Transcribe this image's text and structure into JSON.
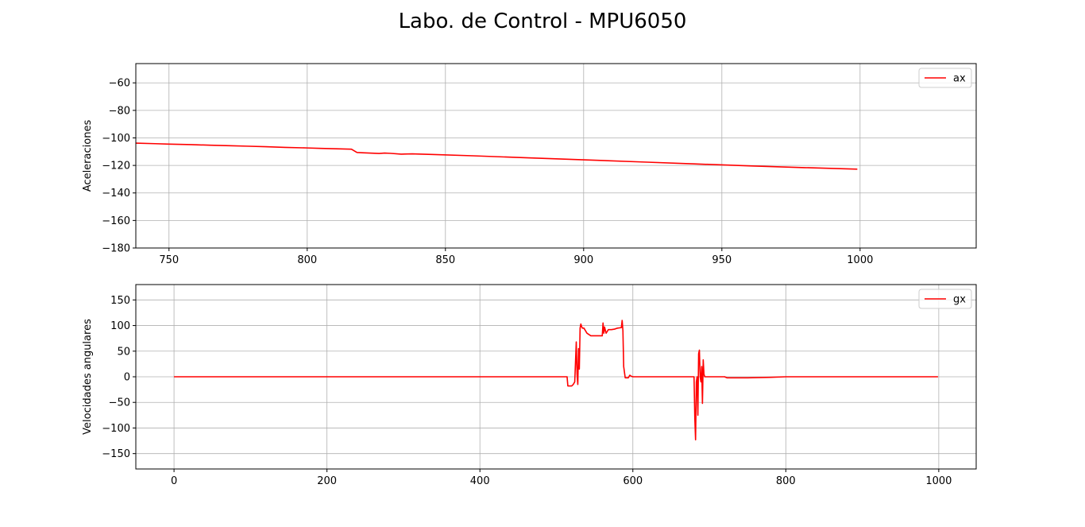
{
  "figure": {
    "title": "Labo. de Control - MPU6050",
    "background": "#ffffff"
  },
  "chart_data": [
    {
      "type": "line",
      "ylabel": "Aceleraciones",
      "xlabel": "",
      "xlim": [
        738,
        1042
      ],
      "ylim": [
        -180,
        -46
      ],
      "xticks": [
        750,
        800,
        850,
        900,
        950,
        1000
      ],
      "yticks": [
        -180,
        -160,
        -140,
        -120,
        -100,
        -80,
        -60
      ],
      "xtick_labels": [
        "750",
        "800",
        "850",
        "900",
        "950",
        "1000"
      ],
      "ytick_labels": [
        "−180",
        "−160",
        "−140",
        "−120",
        "−100",
        "−80",
        "−60"
      ],
      "grid": true,
      "legend_position": "upper right",
      "series": [
        {
          "name": "ax",
          "color": "#ff0000",
          "x": [
            738,
            745,
            750,
            758,
            765,
            772,
            778,
            785,
            792,
            800,
            805,
            812,
            816,
            818,
            820,
            826,
            828,
            830,
            834,
            838,
            845,
            860,
            880,
            900,
            920,
            940,
            960,
            980,
            999
          ],
          "y": [
            -103.8,
            -104.2,
            -104.5,
            -104.9,
            -105.3,
            -105.7,
            -106.0,
            -106.4,
            -106.9,
            -107.3,
            -107.6,
            -108.0,
            -108.2,
            -110.6,
            -110.8,
            -111.3,
            -111.0,
            -111.2,
            -111.8,
            -111.6,
            -112.0,
            -113.0,
            -114.5,
            -115.9,
            -117.4,
            -118.9,
            -120.3,
            -121.6,
            -122.7
          ]
        }
      ]
    },
    {
      "type": "line",
      "ylabel": "Velocidades angulares",
      "xlabel": "",
      "xlim": [
        -49.95,
        1048.95
      ],
      "ylim": [
        -180,
        180
      ],
      "xticks": [
        0,
        200,
        400,
        600,
        800,
        1000
      ],
      "yticks": [
        -150,
        -100,
        -50,
        0,
        50,
        100,
        150
      ],
      "xtick_labels": [
        "0",
        "200",
        "400",
        "600",
        "800",
        "1000"
      ],
      "ytick_labels": [
        "−150",
        "−100",
        "−50",
        "0",
        "50",
        "100",
        "150"
      ],
      "grid": true,
      "legend_position": "upper right",
      "series": [
        {
          "name": "gx",
          "color": "#ff0000",
          "x": [
            0,
            100,
            200,
            300,
            400,
            500,
            514,
            515,
            520,
            522,
            524,
            526,
            527,
            528,
            529,
            530,
            531,
            532,
            533,
            534,
            536,
            540,
            545,
            550,
            556,
            560,
            561,
            562,
            563,
            565,
            568,
            572,
            576,
            580,
            585,
            586,
            587,
            588,
            590,
            592,
            594,
            596,
            598,
            600,
            620,
            650,
            670,
            680,
            681,
            682,
            683,
            684,
            685,
            686,
            687,
            688,
            689,
            690,
            691,
            692,
            693,
            694,
            695,
            700,
            720,
            723,
            725,
            750,
            780,
            800,
            820,
            850,
            880,
            900,
            950,
            999
          ],
          "y": [
            0,
            0,
            0,
            0,
            0,
            0,
            0,
            -18,
            -18,
            -15,
            -10,
            68,
            5,
            -15,
            55,
            15,
            95,
            103,
            98,
            95,
            95,
            85,
            80,
            80,
            80,
            80,
            105,
            85,
            97,
            85,
            92,
            92,
            93,
            95,
            96,
            110,
            90,
            20,
            -2,
            -2,
            -2,
            3,
            1,
            0,
            0,
            0,
            0,
            0,
            -80,
            -123,
            -10,
            0,
            -75,
            45,
            52,
            0,
            -10,
            20,
            -52,
            33,
            5,
            0,
            0,
            0,
            0,
            -2,
            -2,
            -2,
            -1,
            0,
            0,
            0,
            0,
            0,
            0,
            0
          ]
        }
      ]
    }
  ]
}
